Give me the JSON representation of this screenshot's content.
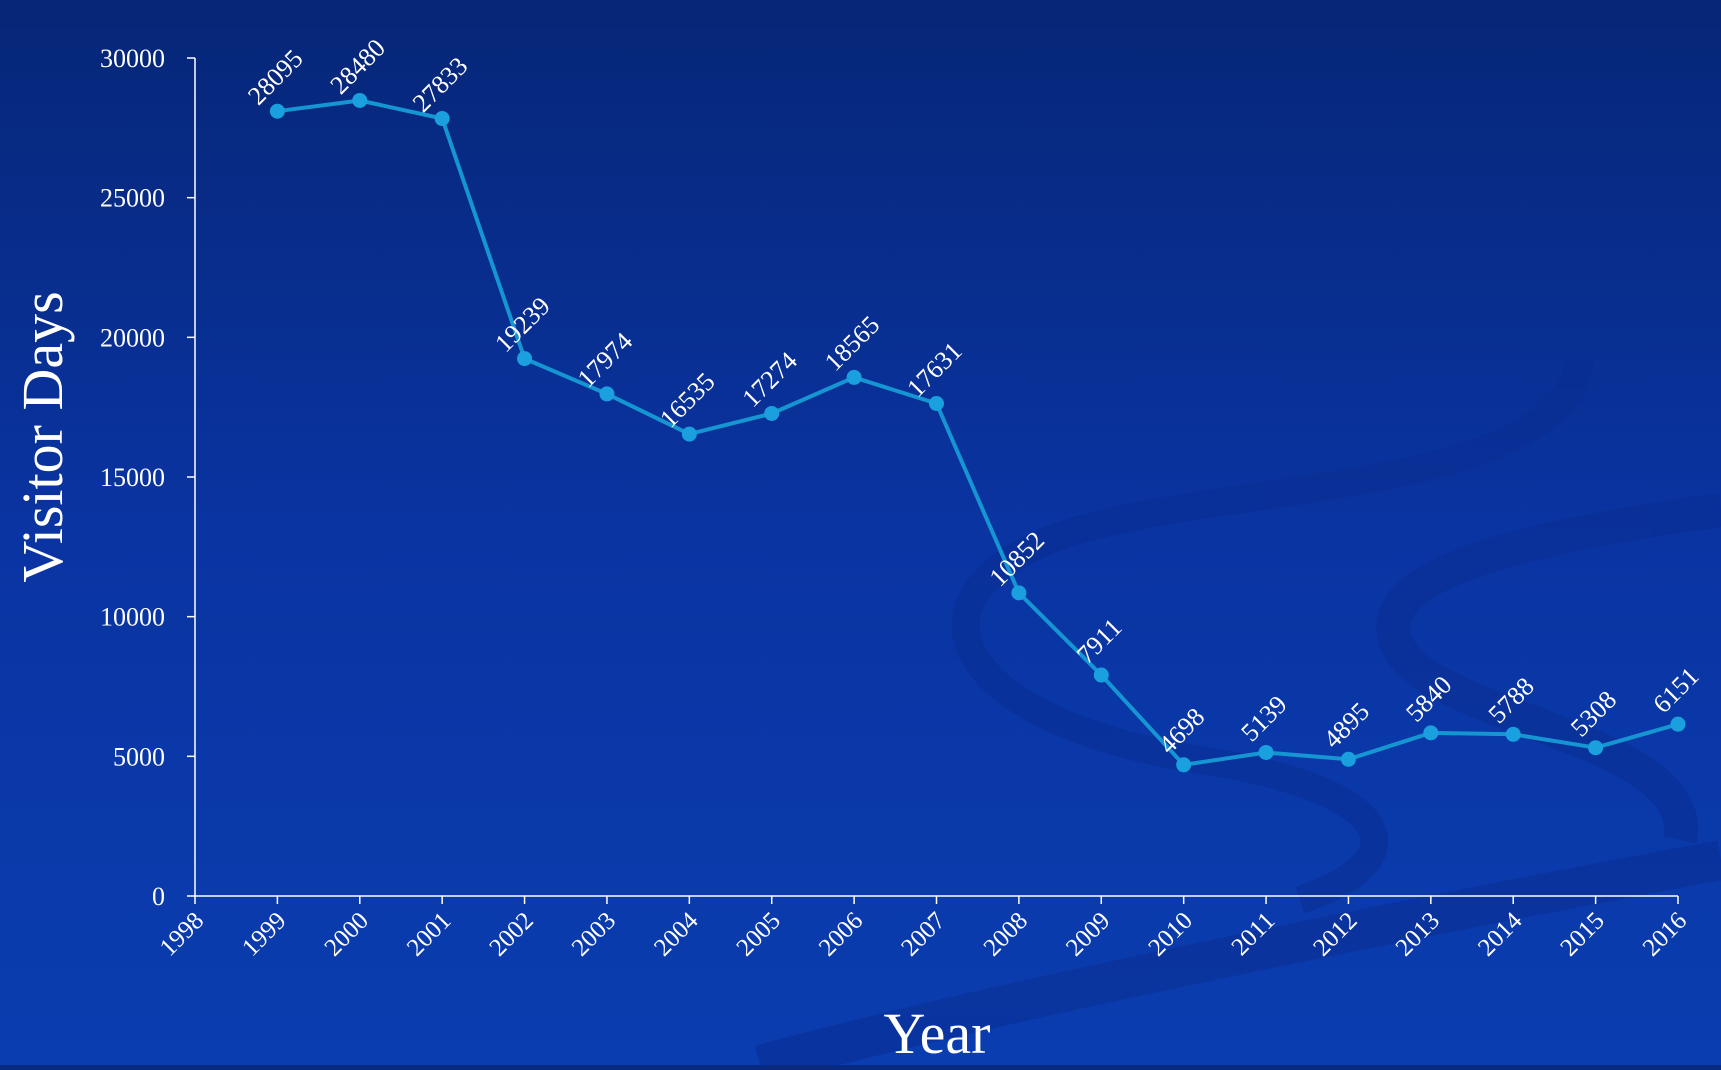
{
  "colors": {
    "background_top": "#0a2a80",
    "background_bottom": "#0a3cae",
    "line": "#1596d3",
    "marker": "#1aa0de",
    "text": "#ffffff",
    "axis": "#ffffff",
    "swirl": "#0a2f96"
  },
  "chart_data": {
    "type": "line",
    "title": "",
    "xlabel": "Year",
    "ylabel": "Visitor Days",
    "xlim": [
      1998,
      2016
    ],
    "ylim": [
      0,
      30000
    ],
    "x_ticks": [
      "1998",
      "1999",
      "2000",
      "2001",
      "2002",
      "2003",
      "2004",
      "2005",
      "2006",
      "2007",
      "2008",
      "2009",
      "2010",
      "2011",
      "2012",
      "2013",
      "2014",
      "2015",
      "2016"
    ],
    "y_ticks": [
      "0",
      "5000",
      "10000",
      "15000",
      "20000",
      "25000",
      "30000"
    ],
    "grid": false,
    "legend": "none",
    "series": [
      {
        "x": [
          1999,
          2000,
          2001,
          2002,
          2003,
          2004,
          2005,
          2006,
          2007,
          2008,
          2009,
          2010,
          2011,
          2012,
          2013,
          2014,
          2015,
          2016
        ],
        "values": [
          28095,
          28480,
          27833,
          19239,
          17974,
          16535,
          17274,
          18565,
          17631,
          10852,
          7911,
          4698,
          5139,
          4895,
          5840,
          5788,
          5308,
          6151
        ],
        "labels": [
          "28095",
          "28480",
          "27833",
          "19239",
          "17974",
          "16535",
          "17274",
          "18565",
          "17631",
          "10852",
          "7911",
          "4698",
          "5139",
          "4895",
          "5840",
          "5788",
          "5308",
          "6151"
        ]
      }
    ]
  }
}
